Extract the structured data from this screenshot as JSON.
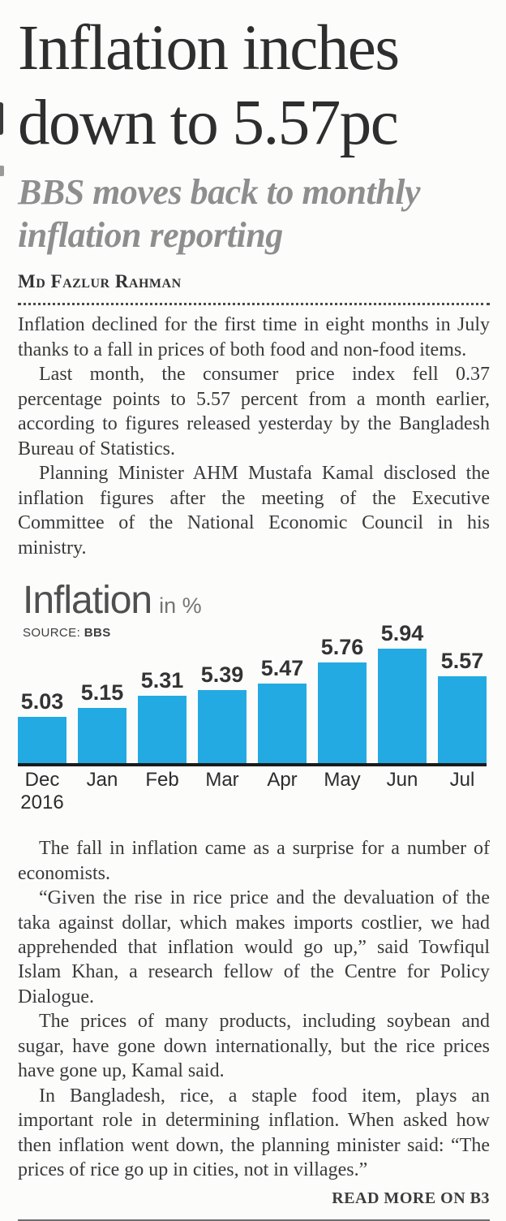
{
  "article": {
    "headline": "Inflation inches down to 5.57pc",
    "subheadline": "BBS moves back to monthly inflation reporting",
    "byline": "Md Fazlur Rahman",
    "paragraphs_top": [
      "Inflation declined for the first time in eight months in July thanks to a fall in prices of both food and non-food items.",
      "Last month, the consumer price index fell 0.37 percentage points to 5.57 percent from a month earlier, according to figures released yesterday by the Bangladesh Bureau of Statistics.",
      "Planning Minister AHM Mustafa Kamal disclosed the inflation figures after the meeting of the Executive Committee of the National Economic Council in his ministry."
    ],
    "paragraphs_bottom": [
      "The fall in inflation came as a surprise for a number of economists.",
      "“Given the rise in rice price and the devaluation of the taka against dollar, which makes imports costlier, we had apprehended that inflation would go up,” said Towfiqul Islam Khan, a research fellow of the Centre for Policy Dialogue.",
      "The prices of many products, including soybean and sugar, have gone down internationally, but the rice prices have gone up, Kamal said.",
      "In Bangladesh, rice, a staple food item, plays an important role in determining inflation. When asked how then inflation went down, the planning minister said: “The prices of rice go up in cities, not in villages.”"
    ],
    "read_more": "READ MORE ON B3"
  },
  "chart_data": {
    "type": "bar",
    "title": "Inflation",
    "unit_label": "in %",
    "source_label": "SOURCE:",
    "source_value": "BBS",
    "categories": [
      "Dec 2016",
      "Jan",
      "Feb",
      "Mar",
      "Apr",
      "May",
      "Jun",
      "Jul"
    ],
    "values": [
      5.03,
      5.15,
      5.31,
      5.39,
      5.47,
      5.76,
      5.94,
      5.57
    ],
    "value_labels": [
      "5.03",
      "5.15",
      "5.31",
      "5.39",
      "5.47",
      "5.76",
      "5.94",
      "5.57"
    ],
    "ylim": [
      4.4,
      6.0
    ],
    "bar_color": "#24aae2",
    "axis_color": "#1b1b1b",
    "grid": false,
    "legend": "none",
    "xlabel": "",
    "ylabel": "Inflation in %"
  }
}
